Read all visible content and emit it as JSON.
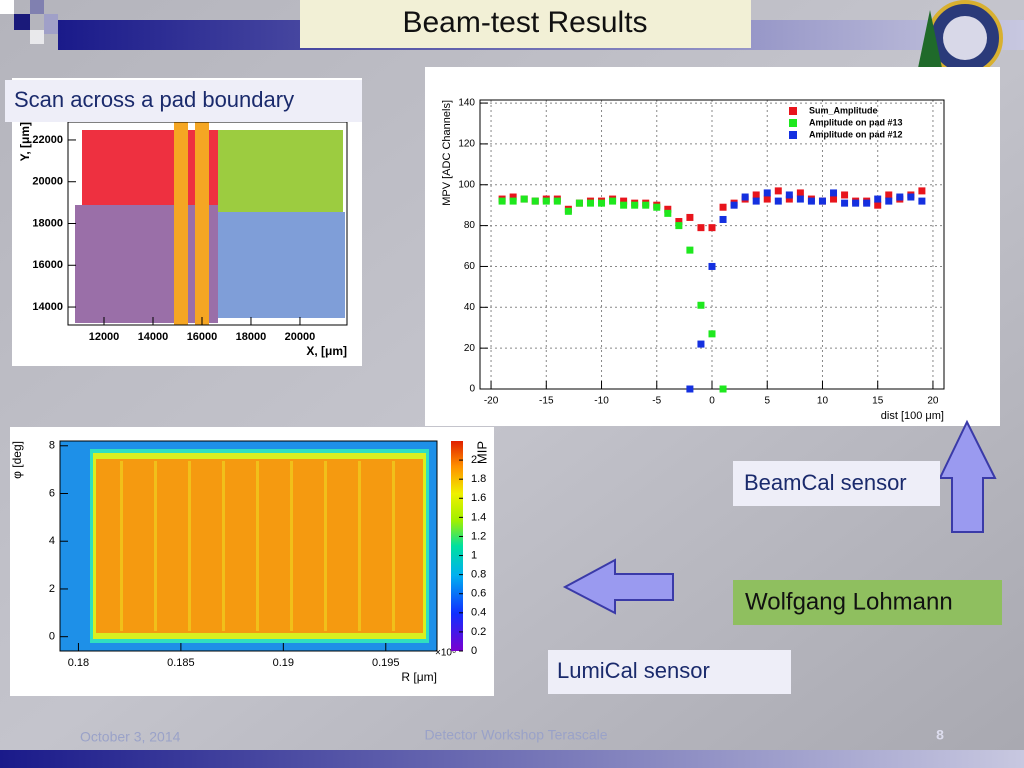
{
  "slide": {
    "title": "Beam-test Results",
    "footer_date": "October 3, 2014",
    "footer_event": "Detector Workshop Terascale",
    "page_number": "8"
  },
  "labels": {
    "scan": "Scan across a pad boundary",
    "beamcal": "BeamCal sensor",
    "author": "Wolfgang Lohmann",
    "lumical": "LumiCal sensor"
  },
  "chart_data": [
    {
      "type": "scatter-density",
      "xlabel": "X, [μm]",
      "ylabel": "Y, [μm]",
      "xlim": [
        10530,
        21920
      ],
      "xticks": [
        12000,
        14000,
        16000,
        18000,
        20000
      ],
      "ylim": [
        13140,
        22860
      ],
      "yticks": [
        14000,
        16000,
        18000,
        20000,
        22000
      ]
    },
    {
      "type": "scatter",
      "xlabel": "dist [100 μm]",
      "ylabel": "MPV [ADC Channels]",
      "xlim": [
        -21,
        21
      ],
      "xticks": [
        -20,
        -15,
        -10,
        -5,
        0,
        5,
        10,
        15,
        20
      ],
      "ylim": [
        0,
        141.5
      ],
      "yticks": [
        0,
        20,
        40,
        60,
        80,
        100,
        120,
        140
      ],
      "grid": true,
      "legend": "top-right",
      "x": [
        -19,
        -18,
        -17,
        -16,
        -15,
        -14,
        -13,
        -12,
        -11,
        -10,
        -9,
        -8,
        -7,
        -6,
        -5,
        -4,
        -3,
        -2,
        -1,
        0,
        1,
        2,
        3,
        4,
        5,
        6,
        7,
        8,
        9,
        10,
        11,
        12,
        13,
        14,
        15,
        16,
        17,
        18,
        19
      ],
      "series": [
        {
          "name": "Sum_Amplitude",
          "color": "#e8141c",
          "values": [
            93,
            94,
            93,
            92,
            93,
            93,
            88,
            91,
            92,
            92,
            93,
            92,
            91,
            91,
            90,
            88,
            82,
            84,
            79,
            79,
            89,
            91,
            93,
            95,
            93,
            97,
            93,
            96,
            93,
            92,
            93,
            95,
            92,
            92,
            90,
            95,
            93,
            95,
            97
          ]
        },
        {
          "name": "Amplitude on pad #13",
          "color": "#1ee81e",
          "values": [
            92,
            92,
            93,
            92,
            92,
            92,
            87,
            91,
            91,
            91,
            92,
            90,
            90,
            90,
            89,
            86,
            80,
            68,
            41,
            27,
            0,
            null,
            null,
            null,
            null,
            null,
            null,
            null,
            null,
            null,
            null,
            null,
            null,
            null,
            null,
            null,
            null,
            null,
            null
          ]
        },
        {
          "name": "Amplitude on pad #12",
          "color": "#1430e0",
          "values": [
            null,
            null,
            null,
            null,
            null,
            null,
            null,
            null,
            null,
            null,
            null,
            null,
            null,
            null,
            null,
            null,
            null,
            0,
            22,
            60,
            83,
            90,
            94,
            92,
            96,
            92,
            95,
            93,
            92,
            92,
            96,
            91,
            91,
            91,
            93,
            92,
            94,
            94,
            92
          ]
        }
      ]
    },
    {
      "type": "heatmap",
      "xlabel": "R [μm]",
      "ylabel": "φ [deg]",
      "x_multiplier": "×10⁶",
      "xlim": [
        0.1791,
        0.1975
      ],
      "xticks": [
        0.18,
        0.185,
        0.19,
        0.195
      ],
      "ylim": [
        -0.6,
        8.2
      ],
      "yticks": [
        0,
        2,
        4,
        6,
        8
      ],
      "colorbar_label": "MIP",
      "colorbar_lim": [
        0,
        2.2
      ],
      "colorbar_ticks": [
        0,
        0.2,
        0.4,
        0.6,
        0.8,
        1,
        1.2,
        1.4,
        1.6,
        1.8,
        2
      ]
    }
  ]
}
